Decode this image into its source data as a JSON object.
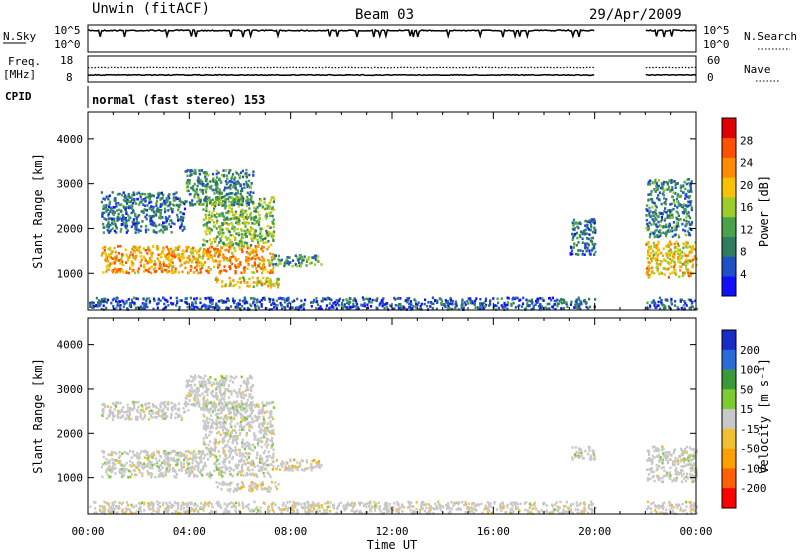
{
  "header": {
    "station": "Unwin (fitACF)",
    "beam": "Beam 03",
    "date": "29/Apr/2009"
  },
  "top_panels": {
    "nsky_label": "N.Sky",
    "nsearch_label": "N.Search",
    "freq_label_1": "Freq.",
    "freq_label_2": "[MHz]",
    "nave_label": "Nave",
    "cpid_label": "CPID",
    "cpid_value": "normal (fast stereo) 153",
    "noise_ticks": [
      "10^5",
      "10^0"
    ],
    "freq_ticks": [
      "18",
      "8"
    ],
    "nave_ticks": [
      "60",
      "0"
    ]
  },
  "chart_data": [
    {
      "type": "heatmap",
      "name": "power",
      "ylabel": "Slant Range [km]",
      "yticks": [
        1000,
        2000,
        3000,
        4000
      ],
      "ylim": [
        180,
        4600
      ],
      "xlim": [
        "00:00",
        "24:00"
      ],
      "colorbar": {
        "label": "Power [dB]",
        "ticks": [
          4,
          8,
          12,
          16,
          20,
          24,
          28
        ],
        "range": [
          0,
          32
        ],
        "colors": [
          "#1010ff",
          "#2050c8",
          "#2f7d5e",
          "#4aa24a",
          "#9ccd2a",
          "#f7c200",
          "#ff8c00",
          "#ff5000",
          "#e00000"
        ]
      },
      "data_gap": [
        "20:00",
        "22:00"
      ],
      "regions": [
        {
          "t": [
            0.5,
            7.3
          ],
          "range": [
            1000,
            1600
          ],
          "level": 22
        },
        {
          "t": [
            4.5,
            7.3
          ],
          "range": [
            1600,
            2700
          ],
          "level": 14
        },
        {
          "t": [
            0.5,
            3.8
          ],
          "range": [
            1900,
            2800
          ],
          "level": 8
        },
        {
          "t": [
            3.8,
            6.5
          ],
          "range": [
            2500,
            3300
          ],
          "level": 10
        },
        {
          "t": [
            5.0,
            7.5
          ],
          "range": [
            680,
            900
          ],
          "level": 18
        },
        {
          "t": [
            7.2,
            9.2
          ],
          "range": [
            1150,
            1400
          ],
          "level": 10
        },
        {
          "t": [
            22.0,
            24.0
          ],
          "range": [
            900,
            1700
          ],
          "level": 20
        },
        {
          "t": [
            22.0,
            23.8
          ],
          "range": [
            1800,
            3100
          ],
          "level": 9
        },
        {
          "t": [
            19.0,
            20.0
          ],
          "range": [
            1400,
            2200
          ],
          "level": 7
        },
        {
          "t": [
            0.0,
            24.0
          ],
          "range": [
            180,
            450
          ],
          "level": 6
        }
      ]
    },
    {
      "type": "heatmap",
      "name": "velocity",
      "ylabel": "Slant Range [km]",
      "yticks": [
        1000,
        2000,
        3000,
        4000
      ],
      "ylim": [
        180,
        4600
      ],
      "xlim": [
        "00:00",
        "24:00"
      ],
      "xticks": [
        "00:00",
        "04:00",
        "08:00",
        "12:00",
        "16:00",
        "20:00",
        "00:00"
      ],
      "xlabel": "Time UT",
      "colorbar": {
        "label": "Velocity [m s⁻¹]",
        "ticks": [
          200,
          100,
          50,
          15,
          -15,
          -50,
          -100,
          -200
        ],
        "colors": [
          "#1a2cc8",
          "#2a6bd8",
          "#3a9a3a",
          "#7acc30",
          "#c8c8c8",
          "#f0c030",
          "#ffa000",
          "#ff6000",
          "#ff0000"
        ]
      },
      "data_gap": [
        "20:00",
        "22:00"
      ],
      "regions": [
        {
          "t": [
            0.5,
            7.3
          ],
          "range": [
            1000,
            1600
          ],
          "velocity": 0
        },
        {
          "t": [
            4.5,
            7.3
          ],
          "range": [
            1600,
            2700
          ],
          "velocity": 0
        },
        {
          "t": [
            0.5,
            3.8
          ],
          "range": [
            2300,
            2700
          ],
          "velocity": 0
        },
        {
          "t": [
            3.8,
            6.5
          ],
          "range": [
            2500,
            3300
          ],
          "velocity": 0
        },
        {
          "t": [
            5.0,
            7.5
          ],
          "range": [
            680,
            900
          ],
          "velocity": -30
        },
        {
          "t": [
            7.2,
            9.2
          ],
          "range": [
            1150,
            1400
          ],
          "velocity": -40
        },
        {
          "t": [
            22.0,
            24.0
          ],
          "range": [
            900,
            1700
          ],
          "velocity": 0
        },
        {
          "t": [
            19.0,
            20.0
          ],
          "range": [
            1400,
            1700
          ],
          "velocity": 0
        },
        {
          "t": [
            0.0,
            24.0
          ],
          "range": [
            180,
            450
          ],
          "velocity": -10
        }
      ]
    }
  ]
}
